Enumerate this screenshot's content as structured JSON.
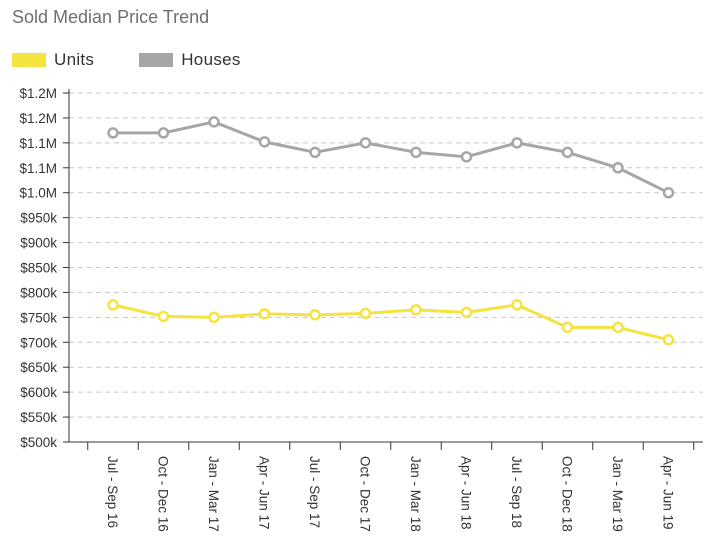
{
  "chart_data": {
    "type": "line",
    "title": "Sold Median Price Trend",
    "categories": [
      "Jul - Sep 16",
      "Oct - Dec 16",
      "Jan - Mar 17",
      "Apr - Jun 17",
      "Jul - Sep 17",
      "Oct - Dec 17",
      "Jan - Mar 18",
      "Apr - Jun 18",
      "Jul - Sep 18",
      "Oct - Dec 18",
      "Jan - Mar 19",
      "Apr - Jun 19"
    ],
    "series": [
      {
        "name": "Units",
        "color": "#f5e33f",
        "values": [
          775000,
          752000,
          750000,
          757000,
          755000,
          758000,
          765000,
          760000,
          775000,
          730000,
          730000,
          705000
        ]
      },
      {
        "name": "Houses",
        "color": "#a6a6a6",
        "values": [
          1120000,
          1120000,
          1142000,
          1102000,
          1081000,
          1100000,
          1081000,
          1072000,
          1100000,
          1081000,
          1050000,
          1000000
        ]
      }
    ],
    "yticks": [
      {
        "value": 500000,
        "label": "$500k"
      },
      {
        "value": 550000,
        "label": "$550k"
      },
      {
        "value": 600000,
        "label": "$600k"
      },
      {
        "value": 650000,
        "label": "$650k"
      },
      {
        "value": 700000,
        "label": "$700k"
      },
      {
        "value": 750000,
        "label": "$750k"
      },
      {
        "value": 800000,
        "label": "$800k"
      },
      {
        "value": 850000,
        "label": "$850k"
      },
      {
        "value": 900000,
        "label": "$900k"
      },
      {
        "value": 950000,
        "label": "$950k"
      },
      {
        "value": 1000000,
        "label": "$1.0M"
      },
      {
        "value": 1050000,
        "label": "$1.1M"
      },
      {
        "value": 1100000,
        "label": "$1.1M"
      },
      {
        "value": 1150000,
        "label": "$1.2M"
      },
      {
        "value": 1200000,
        "label": "$1.2M"
      }
    ],
    "ylim": [
      500000,
      1200000
    ],
    "grid": true,
    "legend": "top-left",
    "xlabel": "",
    "ylabel": ""
  }
}
